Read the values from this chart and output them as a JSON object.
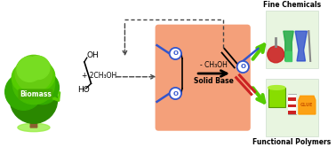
{
  "bg_color": "#ffffff",
  "box_color": "#f4a07a",
  "title_fine": "Fine Chemicals",
  "title_polymers": "Functional Polymers",
  "label_biomass": "Biomass",
  "label_solid_base": "Solid Base",
  "label_minus_ch3oh": "- CH₃OH",
  "label_plus_2ch3oh": "+ 2CH₃OH",
  "dashed_color": "#444444",
  "blue_color": "#3355cc",
  "red_color": "#cc2222",
  "green_arrow": "#55cc00",
  "biomass_bg": "#44aa00"
}
